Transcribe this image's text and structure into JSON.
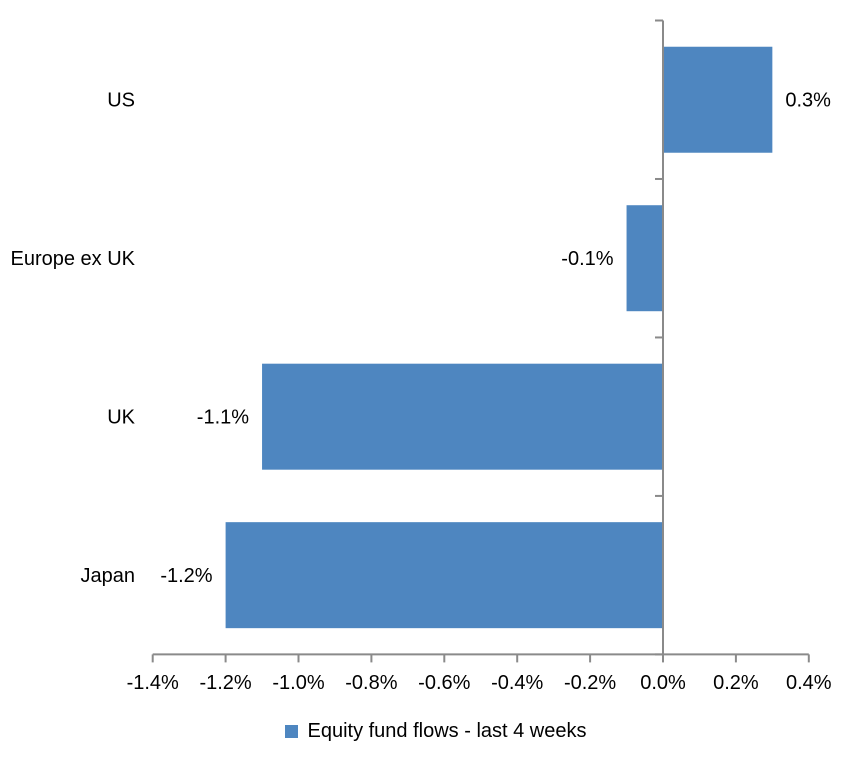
{
  "chart": {
    "legend_label": "Equity fund flows - last 4 weeks",
    "colors": {
      "bar": "#4E86C0",
      "axis": "#8A8A8A",
      "text": "#000000",
      "background": "#FFFFFF"
    }
  },
  "chart_data": {
    "type": "bar",
    "orientation": "horizontal",
    "title": "",
    "xlabel": "",
    "ylabel": "",
    "categories": [
      "US",
      "Europe ex UK",
      "UK",
      "Japan"
    ],
    "series": [
      {
        "name": "Equity fund flows - last 4 weeks",
        "values": [
          0.3,
          -0.1,
          -1.1,
          -1.2
        ],
        "value_labels": [
          "0.3%",
          "-0.1%",
          "-1.1%",
          "-1.2%"
        ]
      }
    ],
    "unit": "percent",
    "xlim": [
      -1.4,
      0.4
    ],
    "x_ticks": [
      -1.4,
      -1.2,
      -1.0,
      -0.8,
      -0.6,
      -0.4,
      -0.2,
      0.0,
      0.2,
      0.4
    ],
    "x_tick_labels": [
      "-1.4%",
      "-1.2%",
      "-1.0%",
      "-0.8%",
      "-0.6%",
      "-0.4%",
      "-0.2%",
      "0.0%",
      "0.2%",
      "0.4%"
    ],
    "grid": false,
    "legend_position": "bottom",
    "value_label_position": "outside-end"
  }
}
